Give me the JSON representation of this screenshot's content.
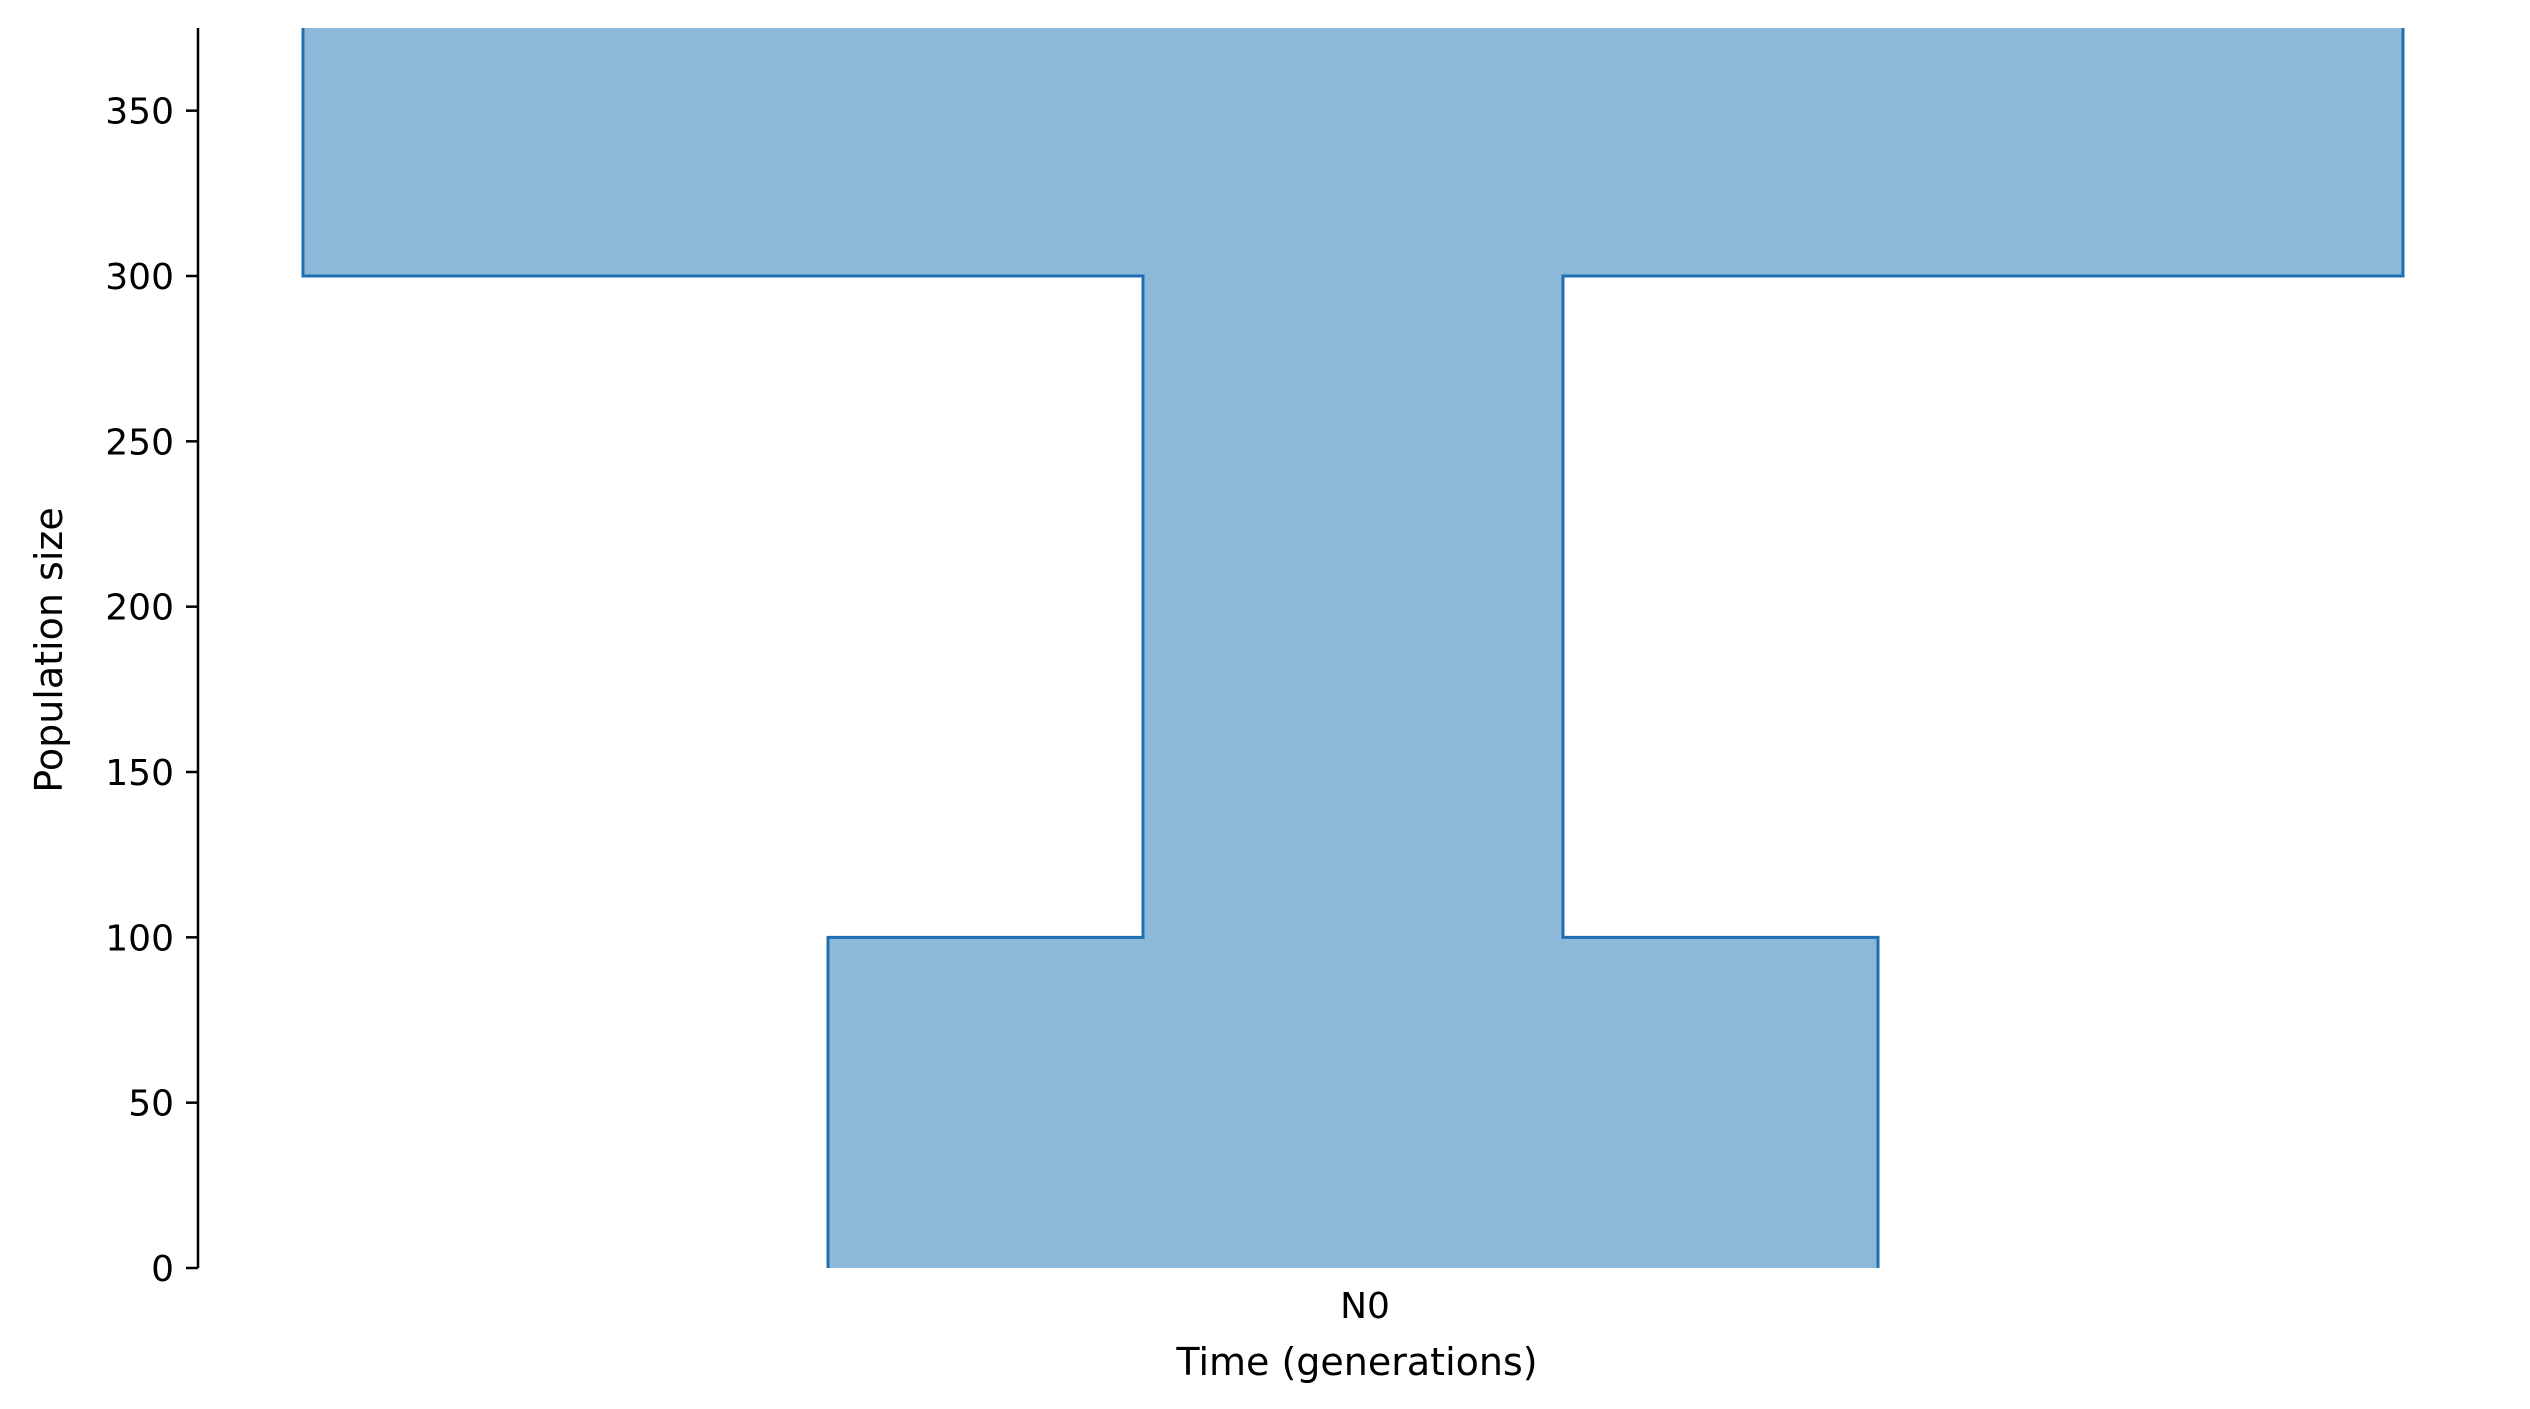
{
  "chart_data": {
    "type": "area",
    "title": "",
    "xlabel": "Time (generations)",
    "ylabel": "Population size",
    "x_ticks": [
      "N0"
    ],
    "y_ticks": [
      0,
      50,
      100,
      150,
      200,
      250,
      300,
      350
    ],
    "ylim": [
      0,
      375
    ],
    "grid": false,
    "legend": "none",
    "series": [
      {
        "segments": [
          {
            "population_size": 100
          },
          {
            "population_size": 300
          },
          {
            "population_size": 375
          }
        ]
      }
    ],
    "colors": {
      "fill": "#8db9d9",
      "edge": "#1f6fb2",
      "axis": "#000000"
    }
  }
}
